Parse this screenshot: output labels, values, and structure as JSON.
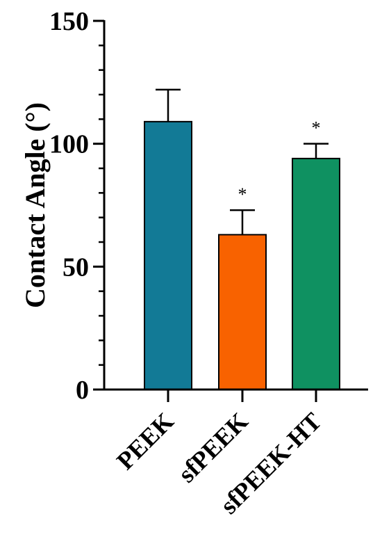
{
  "chart_data": {
    "type": "bar",
    "title": "",
    "xlabel": "",
    "ylabel": "Contact Angle (°)",
    "ylim": [
      0,
      150
    ],
    "yticks": [
      "0",
      "50",
      "100",
      "150"
    ],
    "ytick_values": [
      0,
      50,
      100,
      150
    ],
    "y_minor_step": 10,
    "categories": [
      "PEEK",
      "sfPEEK",
      "sfPEEK-HT"
    ],
    "values": [
      109,
      63,
      94
    ],
    "errors": [
      13,
      10,
      6
    ],
    "significance": [
      "",
      "*",
      "*"
    ],
    "colors": [
      "#127a96",
      "#f86200",
      "#0f9161"
    ],
    "grid": false,
    "legend": "none"
  }
}
